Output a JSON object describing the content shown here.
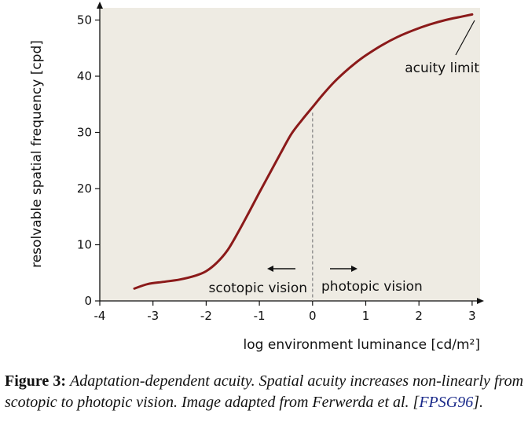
{
  "chart_data": {
    "type": "line",
    "title": "",
    "xlabel": "log environment luminance [cd/m²]",
    "ylabel": "resolvable spatial frequency [cpd]",
    "xlim": [
      -4,
      3.1
    ],
    "ylim": [
      0,
      52
    ],
    "grid": false,
    "x_ticks": [
      -4,
      -3,
      -2,
      -1,
      0,
      1,
      2,
      3
    ],
    "x_tick_labels": [
      "-4",
      "-3",
      "-2",
      "-1",
      "0",
      "1",
      "2",
      "3"
    ],
    "y_ticks": [
      0,
      10,
      20,
      30,
      40,
      50
    ],
    "y_tick_labels": [
      "0",
      "10",
      "20",
      "30",
      "40",
      "50"
    ],
    "background_color": "#eeebe3",
    "series": [
      {
        "color": "#8b1a1a",
        "x": [
          -3.35,
          -3.1,
          -2.8,
          -2.5,
          -2.2,
          -2.0,
          -1.8,
          -1.6,
          -1.4,
          -1.2,
          -1.0,
          -0.8,
          -0.6,
          -0.4,
          -0.2,
          0.0,
          0.2,
          0.4,
          0.6,
          0.8,
          1.0,
          1.3,
          1.6,
          1.9,
          2.2,
          2.5,
          2.8,
          3.0
        ],
        "y": [
          2.2,
          3.0,
          3.4,
          3.8,
          4.5,
          5.3,
          6.8,
          9.0,
          12.2,
          15.7,
          19.3,
          22.8,
          26.3,
          29.7,
          32.2,
          34.5,
          36.8,
          38.9,
          40.7,
          42.3,
          43.7,
          45.5,
          47.0,
          48.2,
          49.2,
          50.0,
          50.6,
          51.0
        ]
      }
    ],
    "annotations": {
      "acuity_limit": "acuity limit",
      "scotopic": "scotopic vision",
      "photopic": "photopic vision",
      "divider_x": 0,
      "divider_y": 33.5
    }
  },
  "caption": {
    "label": "Figure 3:",
    "text": "Adaptation-dependent acuity. Spatial acuity increases non-linearly from scotopic to photopic vision. Image adapted from Ferwerda et al. [",
    "citation": "FPSG96",
    "suffix": "]."
  }
}
